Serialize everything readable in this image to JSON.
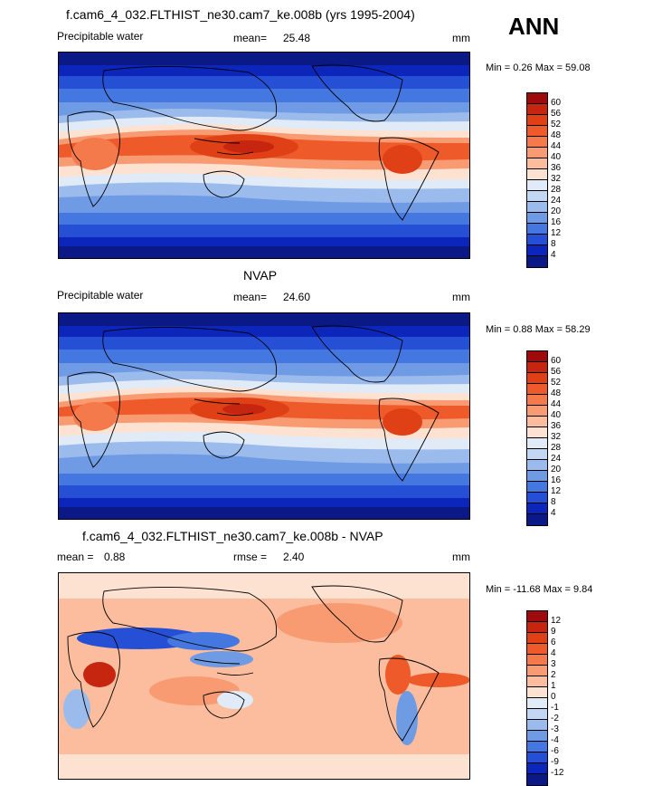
{
  "season": "ANN",
  "chart_data": [
    {
      "type": "heatmap",
      "title": "f.cam6_4_032.FLTHIST_ne30.cam7_ke.008b (yrs 1995-2004)",
      "variable": "Precipitable water",
      "stat_label": "mean=",
      "stat_value": "25.48",
      "units": "mm",
      "minmax": "Min =   0.26 Max =  59.08",
      "levels": [
        "60",
        "56",
        "52",
        "48",
        "44",
        "40",
        "36",
        "32",
        "28",
        "24",
        "20",
        "16",
        "12",
        "8",
        "4"
      ],
      "colors": [
        "#9e0b0c",
        "#c6250f",
        "#e04016",
        "#ef5a2a",
        "#f47a4c",
        "#f89b73",
        "#fbbd9e",
        "#fde2d1",
        "#e0ebf7",
        "#c3d7f2",
        "#9cbbed",
        "#6f9be5",
        "#4577e0",
        "#2550d6",
        "#0c26bb",
        "#0a1985"
      ]
    },
    {
      "type": "heatmap",
      "title": "NVAP",
      "variable": "Precipitable water",
      "stat_label": "mean=",
      "stat_value": "24.60",
      "units": "mm",
      "minmax": "Min =   0.88 Max =  58.29",
      "levels": [
        "60",
        "56",
        "52",
        "48",
        "44",
        "40",
        "36",
        "32",
        "28",
        "24",
        "20",
        "16",
        "12",
        "8",
        "4"
      ],
      "colors": [
        "#9e0b0c",
        "#c6250f",
        "#e04016",
        "#ef5a2a",
        "#f47a4c",
        "#f89b73",
        "#fbbd9e",
        "#fde2d1",
        "#e0ebf7",
        "#c3d7f2",
        "#9cbbed",
        "#6f9be5",
        "#4577e0",
        "#2550d6",
        "#0c26bb",
        "#0a1985"
      ]
    },
    {
      "type": "heatmap",
      "title": "f.cam6_4_032.FLTHIST_ne30.cam7_ke.008b - NVAP",
      "mean_label": "mean =",
      "mean_value": "0.88",
      "stat_label": "rmse =",
      "stat_value": "2.40",
      "units": "mm",
      "minmax": "Min = -11.68 Max =   9.84",
      "levels": [
        "12",
        "9",
        "6",
        "4",
        "3",
        "2",
        "1",
        "0",
        "-1",
        "-2",
        "-3",
        "-4",
        "-6",
        "-9",
        "-12"
      ],
      "colors": [
        "#9e0b0c",
        "#c6250f",
        "#e04016",
        "#ef5a2a",
        "#f47a4c",
        "#f89b73",
        "#fbbd9e",
        "#fde2d1",
        "#e0ebf7",
        "#c3d7f2",
        "#9cbbed",
        "#6f9be5",
        "#4577e0",
        "#2550d6",
        "#0c26bb",
        "#0a1985"
      ]
    }
  ]
}
